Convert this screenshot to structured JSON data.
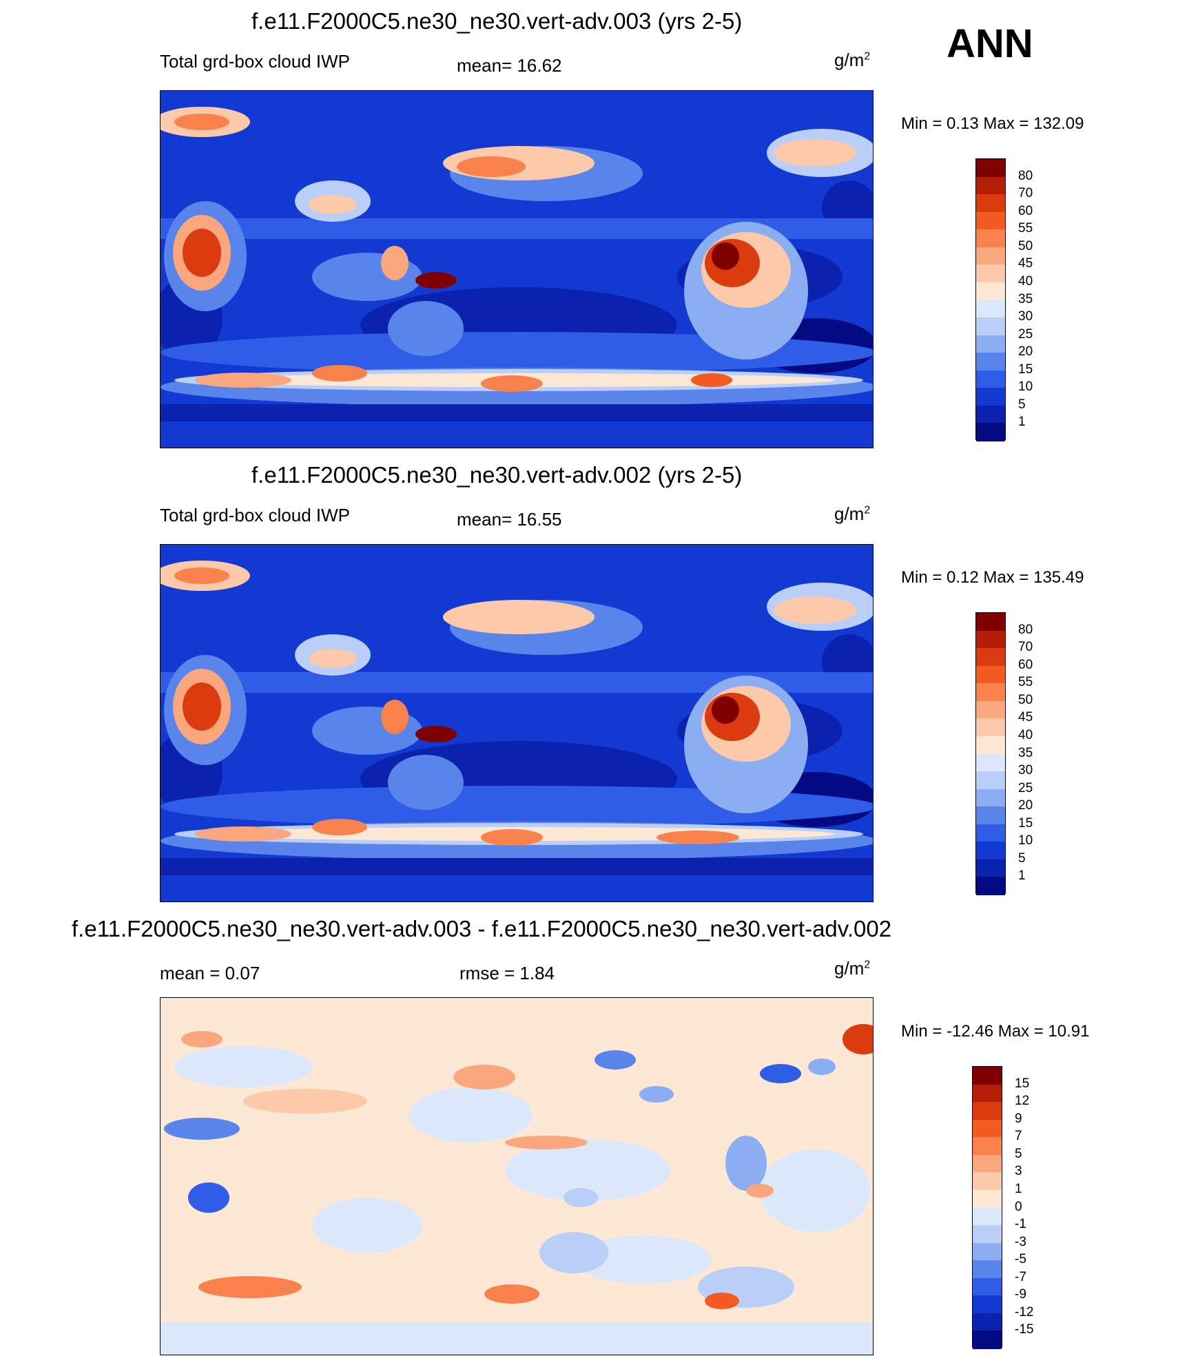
{
  "season": "ANN",
  "panels": [
    {
      "title": "f.e11.F2000C5.ne30_ne30.vert-adv.003 (yrs 2-5)",
      "left_label": "Total grd-box cloud IWP",
      "mid_label": "mean=  16.62",
      "units": "g/m",
      "units_sup": "2",
      "minmax": "Min =   0.13 Max = 132.09",
      "colorbar": "abs"
    },
    {
      "title": "f.e11.F2000C5.ne30_ne30.vert-adv.002 (yrs 2-5)",
      "left_label": "Total grd-box cloud IWP",
      "mid_label": "mean=  16.55",
      "units": "g/m",
      "units_sup": "2",
      "minmax": "Min =   0.12 Max = 135.49",
      "colorbar": "abs"
    },
    {
      "title": "f.e11.F2000C5.ne30_ne30.vert-adv.003 - f.e11.F2000C5.ne30_ne30.vert-adv.002",
      "left_label": "mean =   0.07",
      "mid_label": "rmse =   1.84",
      "units": "g/m",
      "units_sup": "2",
      "minmax": "Min = -12.46 Max =  10.91",
      "colorbar": "diff"
    }
  ],
  "colorbars": {
    "abs": {
      "levels": [
        "80",
        "70",
        "60",
        "55",
        "50",
        "45",
        "40",
        "35",
        "30",
        "25",
        "20",
        "15",
        "10",
        "5",
        "1"
      ],
      "colors": [
        "#7f0000",
        "#b51e06",
        "#dc3b0f",
        "#f45b21",
        "#f9814b",
        "#fba77d",
        "#fcc9ab",
        "#fde8d6",
        "#dbe8fb",
        "#b9cff7",
        "#8aaef1",
        "#5985eb",
        "#2f5de8",
        "#1239d2",
        "#0a22ad",
        "#030a82"
      ]
    },
    "diff": {
      "levels": [
        "15",
        "12",
        "9",
        "7",
        "5",
        "3",
        "1",
        "0",
        "-1",
        "-3",
        "-5",
        "-7",
        "-9",
        "-12",
        "-15"
      ],
      "colors": [
        "#7f0000",
        "#b51e06",
        "#dc3b0f",
        "#f45b21",
        "#f9814b",
        "#fba77d",
        "#fcc9ab",
        "#fde8d6",
        "#dbe8fb",
        "#b9cff7",
        "#8aaef1",
        "#5985eb",
        "#2f5de8",
        "#1239d2",
        "#0a22ad",
        "#030a82"
      ]
    }
  },
  "chart_data": [
    {
      "type": "heatmap",
      "title": "f.e11.F2000C5.ne30_ne30.vert-adv.003 (yrs 2-5)",
      "variable": "Total grd-box cloud IWP",
      "units": "g/m2",
      "mean": 16.62,
      "min": 0.13,
      "max": 132.09,
      "contour_levels": [
        1,
        5,
        10,
        15,
        20,
        25,
        30,
        35,
        40,
        45,
        50,
        55,
        60,
        70,
        80
      ]
    },
    {
      "type": "heatmap",
      "title": "f.e11.F2000C5.ne30_ne30.vert-adv.002 (yrs 2-5)",
      "variable": "Total grd-box cloud IWP",
      "units": "g/m2",
      "mean": 16.55,
      "min": 0.12,
      "max": 135.49,
      "contour_levels": [
        1,
        5,
        10,
        15,
        20,
        25,
        30,
        35,
        40,
        45,
        50,
        55,
        60,
        70,
        80
      ]
    },
    {
      "type": "heatmap",
      "title": "f.e11.F2000C5.ne30_ne30.vert-adv.003 - f.e11.F2000C5.ne30_ne30.vert-adv.002",
      "units": "g/m2",
      "mean": 0.07,
      "rmse": 1.84,
      "min": -12.46,
      "max": 10.91,
      "contour_levels": [
        -15,
        -12,
        -9,
        -7,
        -5,
        -3,
        -1,
        0,
        1,
        3,
        5,
        7,
        9,
        12,
        15
      ]
    }
  ]
}
